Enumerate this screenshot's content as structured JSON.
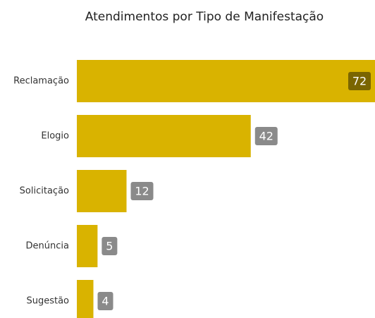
{
  "chart_data": {
    "type": "barh",
    "title": "Atendimentos por Tipo de Manifestação",
    "categories": [
      "Reclamação",
      "Elogio",
      "Solicitação",
      "Denúncia",
      "Sugestão"
    ],
    "values": [
      72,
      42,
      12,
      5,
      4
    ],
    "color": "#d9b300"
  }
}
